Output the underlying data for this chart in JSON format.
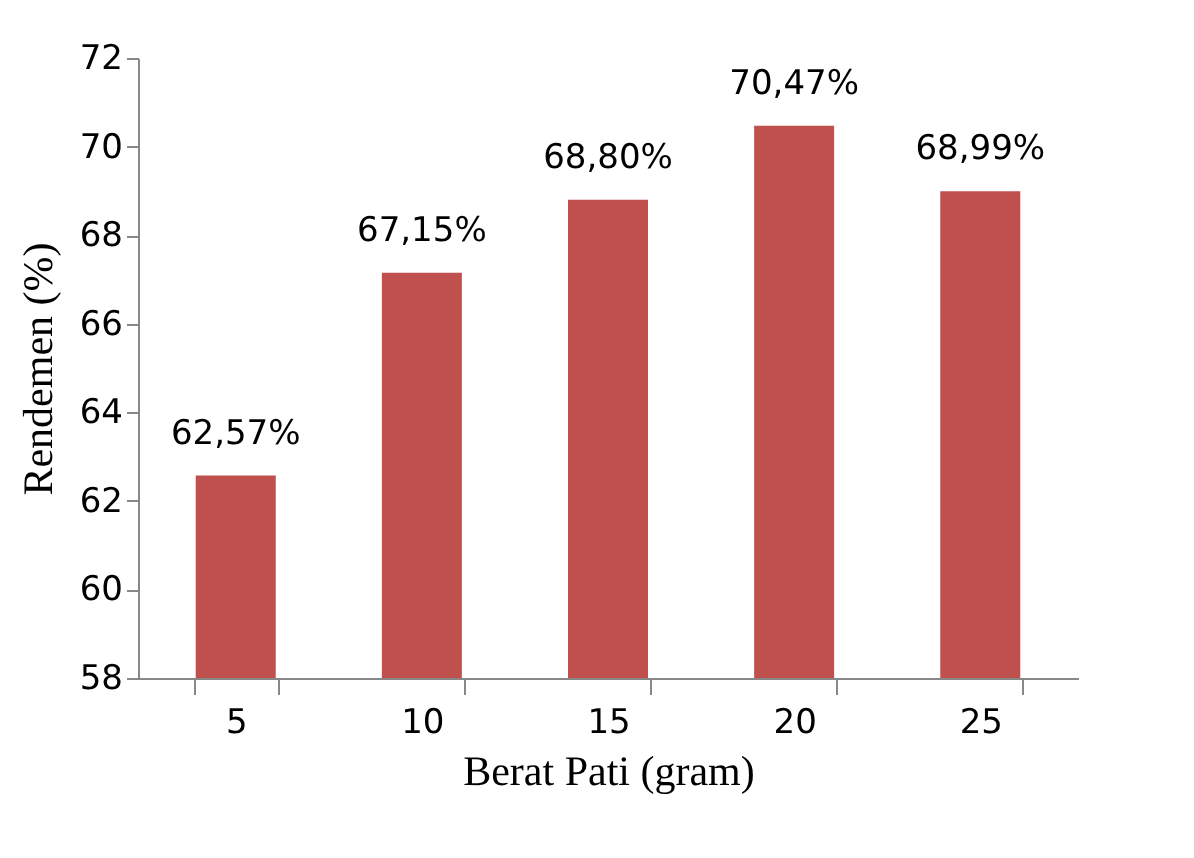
{
  "chart_data": {
    "type": "bar",
    "xlabel": "Berat Pati (gram)",
    "ylabel": "Rendemen (%)",
    "categories": [
      "5",
      "10",
      "15",
      "20",
      "25"
    ],
    "values": [
      62.57,
      67.15,
      68.8,
      70.47,
      68.99
    ],
    "value_labels": [
      "62,57%",
      "67,15%",
      "68,80%",
      "70,47%",
      "68,99%"
    ],
    "color": "#c0504d",
    "ylim": [
      58,
      72
    ],
    "yticks": [
      58,
      60,
      62,
      64,
      66,
      68,
      70,
      72
    ],
    "grid": false
  }
}
